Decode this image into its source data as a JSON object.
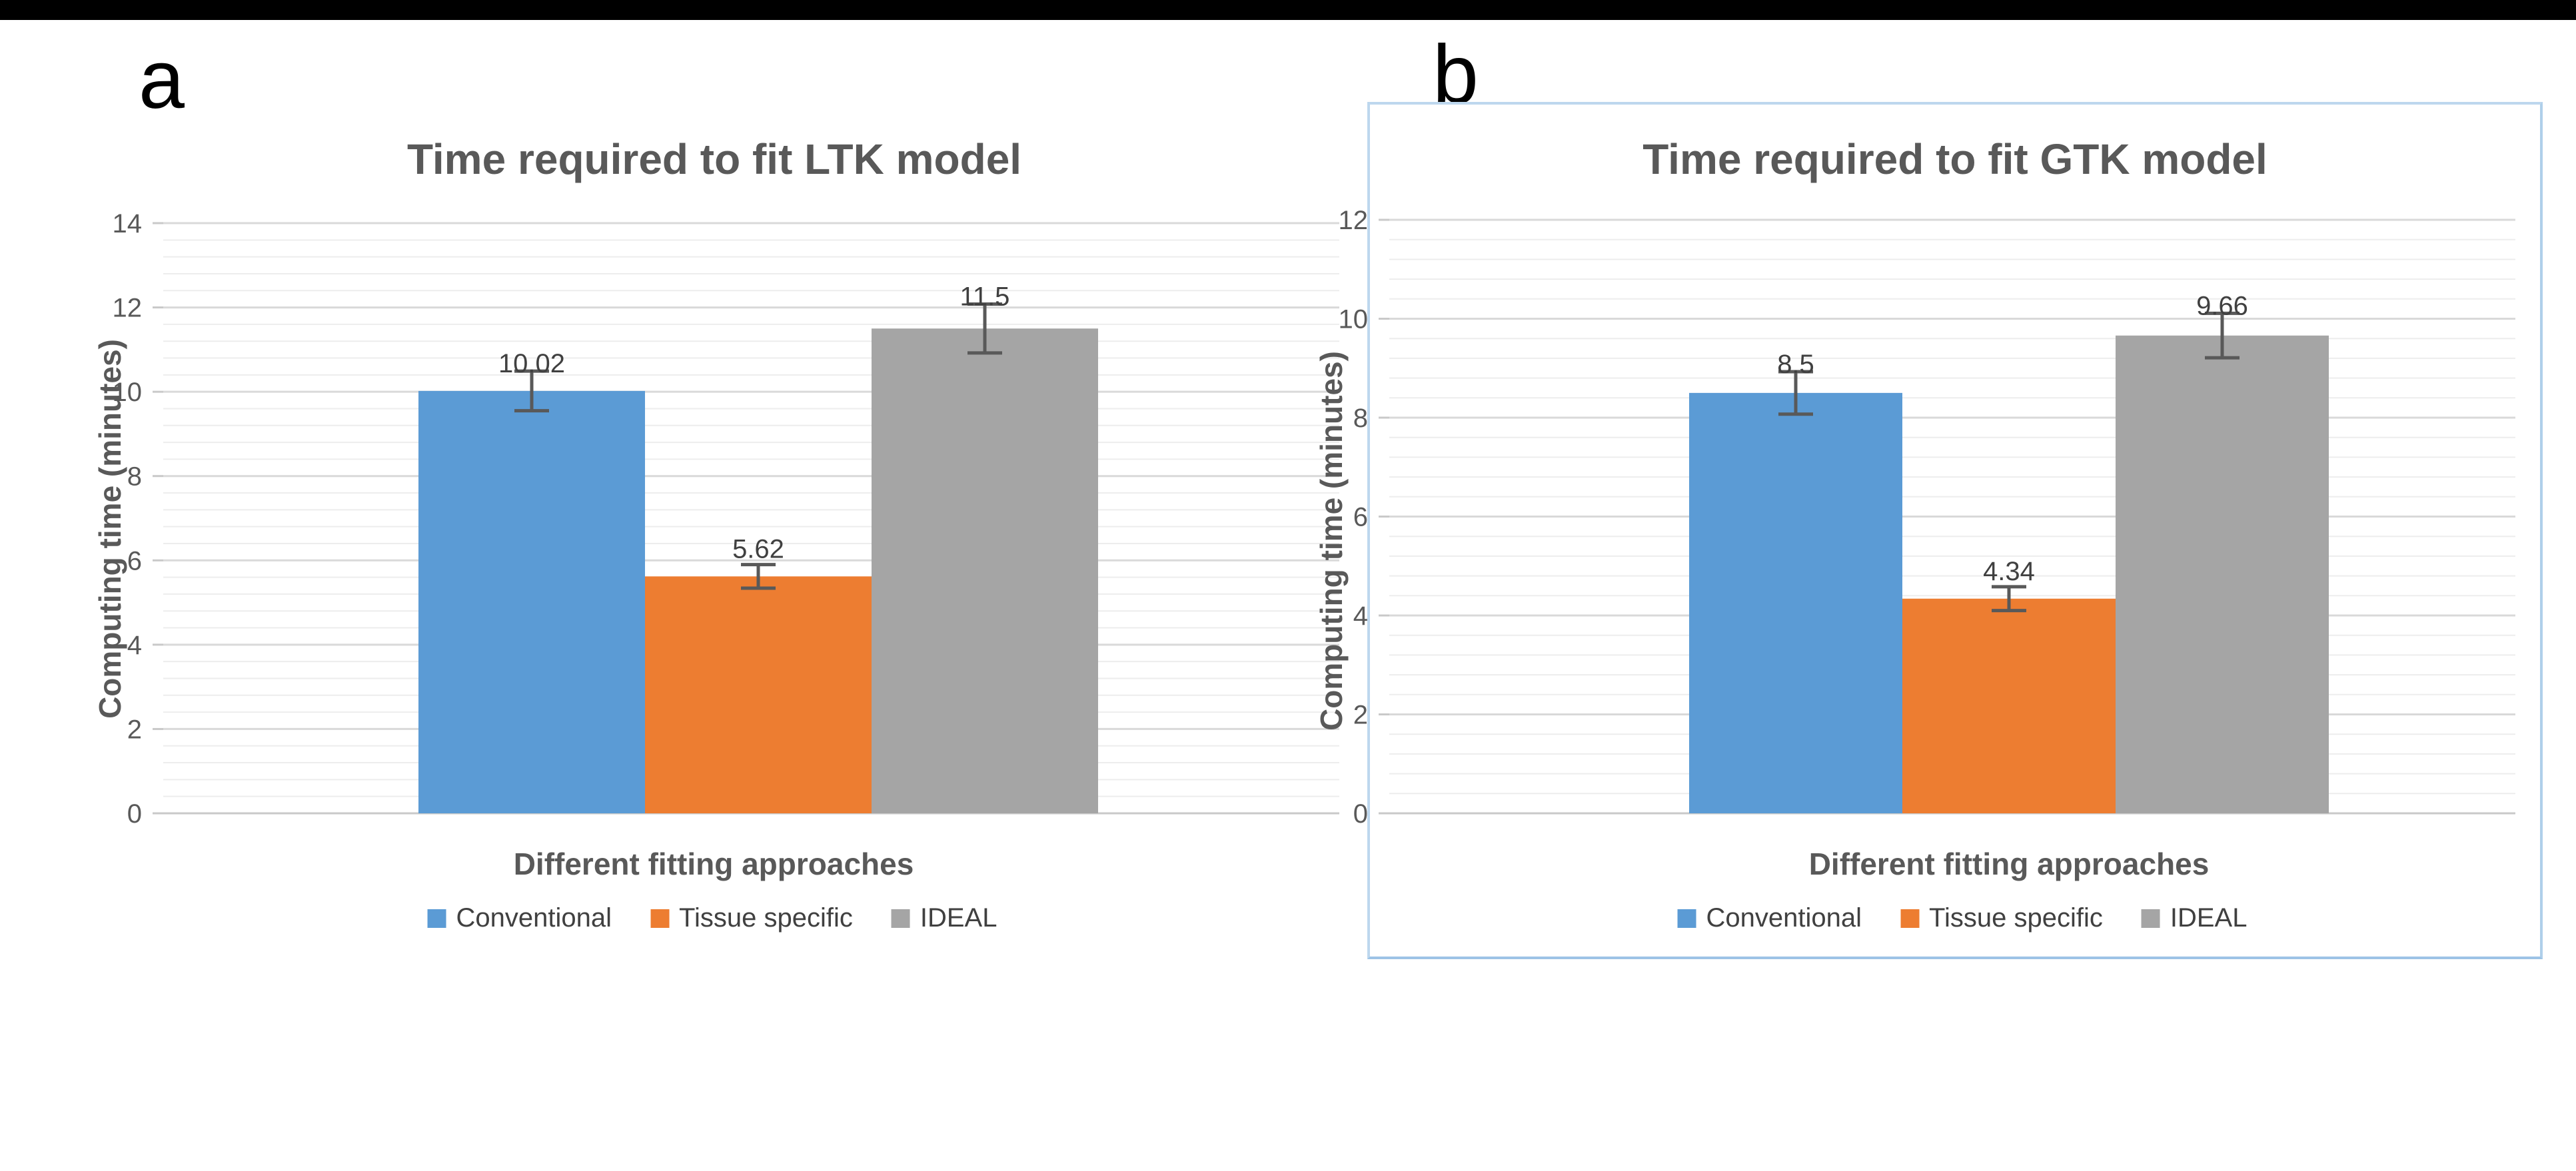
{
  "panels": [
    {
      "letter": "a"
    },
    {
      "letter": "b"
    }
  ],
  "colors": {
    "bar_blue": "#5B9BD5",
    "bar_orange": "#ED7D31",
    "bar_gray": "#A5A5A5",
    "error_bar": "#595959",
    "title_text": "#595959",
    "tick_text": "#595959",
    "value_label_text": "#404040",
    "major_gridline": "#D9D9D9",
    "minor_gridline": "#EDEDED",
    "axis_line": "#C9C9C9",
    "panel_b_border": "#BDD7EE",
    "top_bar": "#000000"
  },
  "chart_data": [
    {
      "id": "ltk",
      "type": "bar",
      "title": "Time required to fit LTK model",
      "xlabel": "Different fitting approaches",
      "ylabel": "Computing time (minutes)",
      "ylim": [
        0,
        14
      ],
      "ytick_step": 2,
      "yminor_step": 0.4,
      "grid": true,
      "legend_position": "bottom",
      "categories": [
        "Conventional",
        "Tissue specific",
        "IDEAL"
      ],
      "values": [
        10.02,
        5.62,
        11.5
      ],
      "value_labels": [
        "10.02",
        "5.62",
        "11.5"
      ],
      "errors": [
        0.47,
        0.28,
        0.58
      ],
      "colors": [
        "#5B9BD5",
        "#ED7D31",
        "#A5A5A5"
      ]
    },
    {
      "id": "gtk",
      "type": "bar",
      "title": "Time required to fit GTK model",
      "xlabel": "Different fitting approaches",
      "ylabel": "Computing time (minutes)",
      "ylim": [
        0,
        12
      ],
      "ytick_step": 2,
      "yminor_step": 0.4,
      "grid": true,
      "legend_position": "bottom",
      "categories": [
        "Conventional",
        "Tissue specific",
        "IDEAL"
      ],
      "values": [
        8.5,
        4.34,
        9.66
      ],
      "value_labels": [
        "8.5",
        "4.34",
        "9.66"
      ],
      "errors": [
        0.43,
        0.24,
        0.45
      ],
      "colors": [
        "#5B9BD5",
        "#ED7D31",
        "#A5A5A5"
      ]
    }
  ]
}
